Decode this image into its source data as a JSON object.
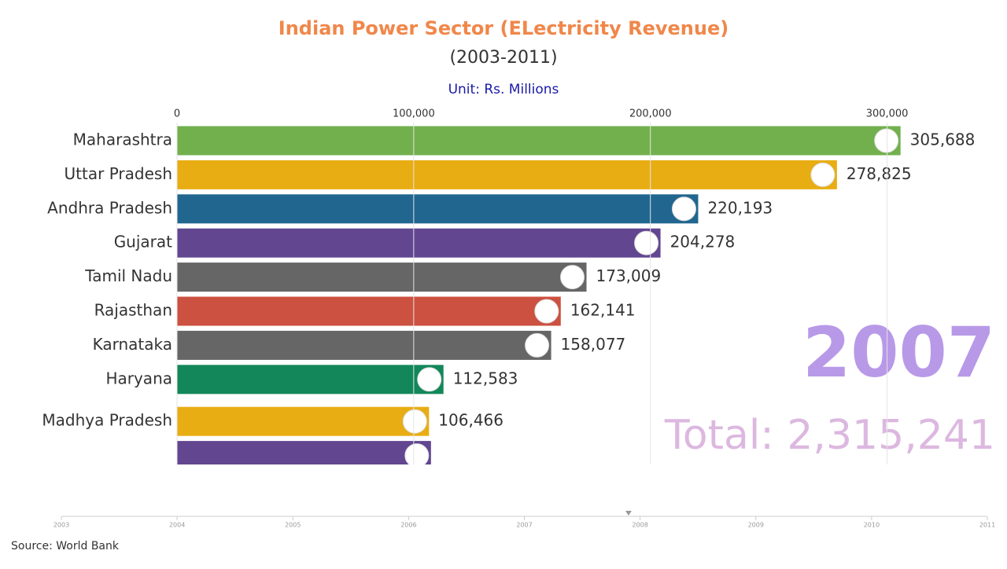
{
  "chart_data": {
    "type": "bar-race",
    "title": "Indian Power Sector (ELectricity Revenue)",
    "subtitle": "(2003-2011)",
    "unit_label": "Unit: Rs. Millions",
    "source": "Source: World Bank",
    "year_label": "2007",
    "total_label": "Total: 2,315,241",
    "categories": [
      "Maharashtra",
      "Uttar Pradesh",
      "Andhra Pradesh",
      "Gujarat",
      "Tamil Nadu",
      "Rajasthan",
      "Karnataka",
      "Haryana",
      "Madhya Pradesh",
      null
    ],
    "values": [
      305688,
      278825,
      220193,
      204278,
      173009,
      162141,
      158077,
      112583,
      106466,
      107300
    ],
    "value_labels": [
      "305,688",
      "278,825",
      "220,193",
      "204,278",
      "173,009",
      "162,141",
      "158,077",
      "112,583",
      "106,466",
      null
    ],
    "colors": [
      "#72b04d",
      "#e8ad13",
      "#21668f",
      "#624690",
      "#666666",
      "#cc5140",
      "#666666",
      "#13875a",
      "#e8ad13",
      "#624690"
    ],
    "xlim": [
      0,
      350000
    ],
    "xticks": [
      0,
      {
        "value": 100000,
        "label": "100,000"
      },
      {
        "value": 200000,
        "label": "200,000"
      },
      {
        "value": 300000,
        "label": "300,000"
      }
    ],
    "grid": true,
    "timeline": {
      "ticks": [
        2003,
        2004,
        2005,
        2006,
        2007,
        2008,
        2009,
        2010,
        2011
      ],
      "position": 2007.9
    }
  }
}
